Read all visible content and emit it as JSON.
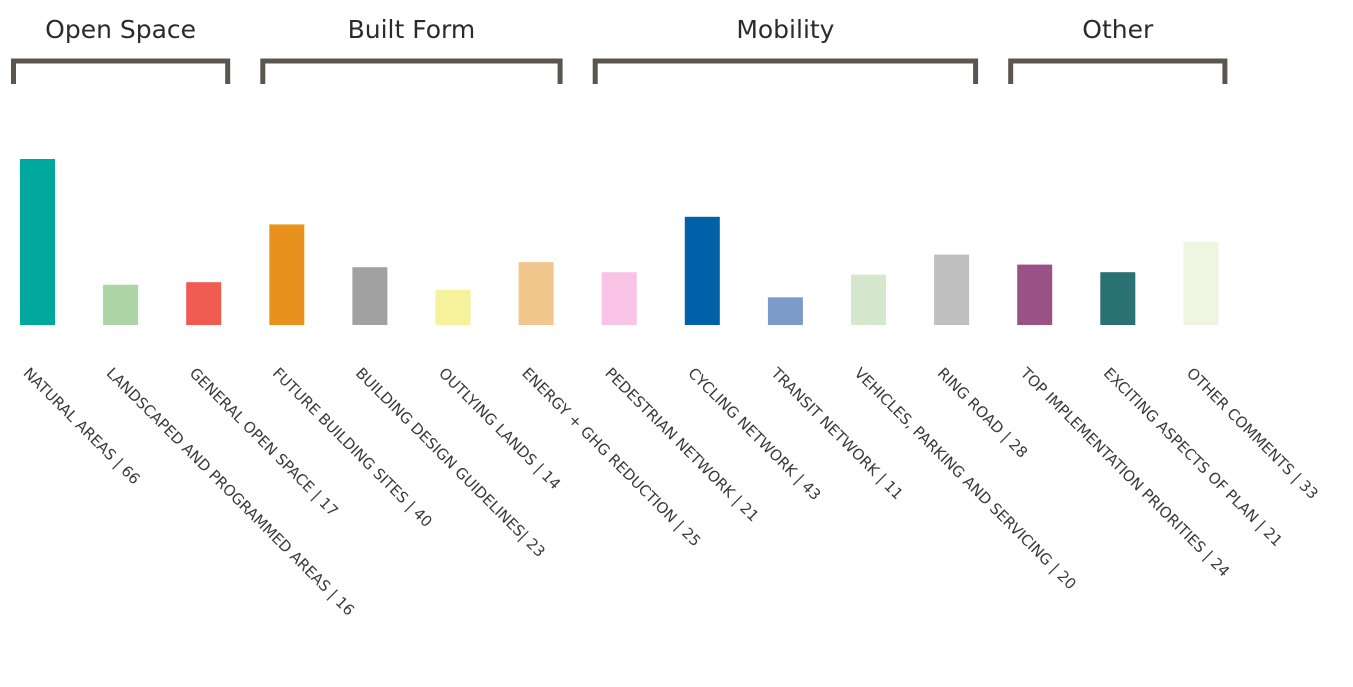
{
  "chart_data": {
    "type": "bar",
    "groups": [
      {
        "name": "Open Space",
        "first": 0,
        "last": 2
      },
      {
        "name": "Built Form",
        "first": 3,
        "last": 6
      },
      {
        "name": "Mobility",
        "first": 7,
        "last": 11
      },
      {
        "name": "Other",
        "first": 12,
        "last": 14
      }
    ],
    "categories": [
      {
        "label": "NATURAL AREAS | 66",
        "value": 66,
        "color": "#00a79d"
      },
      {
        "label": "LANDSCAPED AND PROGRAMMED AREAS | 16",
        "value": 16,
        "color": "#acd4a4"
      },
      {
        "label": "GENERAL OPEN SPACE | 17",
        "value": 17,
        "color": "#f05a50"
      },
      {
        "label": "FUTURE BUILDING SITES | 40",
        "value": 40,
        "color": "#e8911c"
      },
      {
        "label": "BUILDING DESIGN GUIDELINES| 23",
        "value": 23,
        "color": "#a1a1a1"
      },
      {
        "label": "OUTLYING LANDS | 14",
        "value": 14,
        "color": "#f6f29b"
      },
      {
        "label": "ENERGY + GHG REDUCTION | 25",
        "value": 25,
        "color": "#f2c78d"
      },
      {
        "label": "PEDESTRIAN NETWORK | 21",
        "value": 21,
        "color": "#f8c3e4"
      },
      {
        "label": "CYCLING NETWORK | 43",
        "value": 43,
        "color": "#0060a8"
      },
      {
        "label": "TRANSIT NETWORK | 11",
        "value": 11,
        "color": "#7b9bc9"
      },
      {
        "label": "VEHICLES, PARKING AND SERVICING | 20",
        "value": 20,
        "color": "#d5e8cd"
      },
      {
        "label": "RING ROAD | 28",
        "value": 28,
        "color": "#c0c0c0"
      },
      {
        "label": "TOP IMPLEMENTATION PRIORITIES | 24",
        "value": 24,
        "color": "#9a5286"
      },
      {
        "label": "EXCITING ASPECTS OF PLAN | 21",
        "value": 21,
        "color": "#2a7173"
      },
      {
        "label": "OTHER COMMENTS | 33",
        "value": 33,
        "color": "#eef6e2"
      }
    ],
    "ylim": [
      0,
      66
    ],
    "grid": false,
    "legend": "none"
  }
}
